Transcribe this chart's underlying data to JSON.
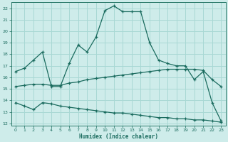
{
  "title": "",
  "xlabel": "Humidex (Indice chaleur)",
  "bg_color": "#ceecea",
  "grid_color": "#a8d8d4",
  "line_color": "#1a6b5e",
  "spine_color": "#2a7a6a",
  "xlim": [
    -0.5,
    23.5
  ],
  "ylim": [
    11.8,
    22.5
  ],
  "yticks": [
    12,
    13,
    14,
    15,
    16,
    17,
    18,
    19,
    20,
    21,
    22
  ],
  "xticks": [
    0,
    1,
    2,
    3,
    4,
    5,
    6,
    7,
    8,
    9,
    10,
    11,
    12,
    13,
    14,
    15,
    16,
    17,
    18,
    19,
    20,
    21,
    22,
    23
  ],
  "line1_x": [
    0,
    1,
    2,
    3,
    4,
    5,
    6,
    7,
    8,
    9,
    10,
    11,
    12,
    13,
    14,
    15,
    16,
    17,
    18,
    19,
    20,
    21,
    22,
    23
  ],
  "line1_y": [
    16.5,
    16.8,
    17.5,
    18.2,
    15.2,
    15.2,
    17.2,
    18.8,
    18.2,
    19.5,
    21.8,
    22.2,
    21.7,
    21.7,
    21.7,
    19.0,
    17.5,
    17.2,
    17.0,
    17.0,
    15.8,
    16.5,
    13.8,
    12.2
  ],
  "line2_x": [
    0,
    1,
    2,
    3,
    4,
    5,
    6,
    7,
    8,
    9,
    10,
    11,
    12,
    13,
    14,
    15,
    16,
    17,
    18,
    19,
    20,
    21,
    22,
    23
  ],
  "line2_y": [
    15.2,
    15.3,
    15.4,
    15.4,
    15.3,
    15.3,
    15.5,
    15.6,
    15.8,
    15.9,
    16.0,
    16.1,
    16.2,
    16.3,
    16.4,
    16.5,
    16.6,
    16.7,
    16.7,
    16.7,
    16.7,
    16.6,
    15.8,
    15.2
  ],
  "line3_x": [
    0,
    1,
    2,
    3,
    4,
    5,
    6,
    7,
    8,
    9,
    10,
    11,
    12,
    13,
    14,
    15,
    16,
    17,
    18,
    19,
    20,
    21,
    22,
    23
  ],
  "line3_y": [
    13.8,
    13.5,
    13.2,
    13.8,
    13.7,
    13.5,
    13.4,
    13.3,
    13.2,
    13.1,
    13.0,
    12.9,
    12.9,
    12.8,
    12.7,
    12.6,
    12.5,
    12.5,
    12.4,
    12.4,
    12.3,
    12.3,
    12.2,
    12.1
  ]
}
